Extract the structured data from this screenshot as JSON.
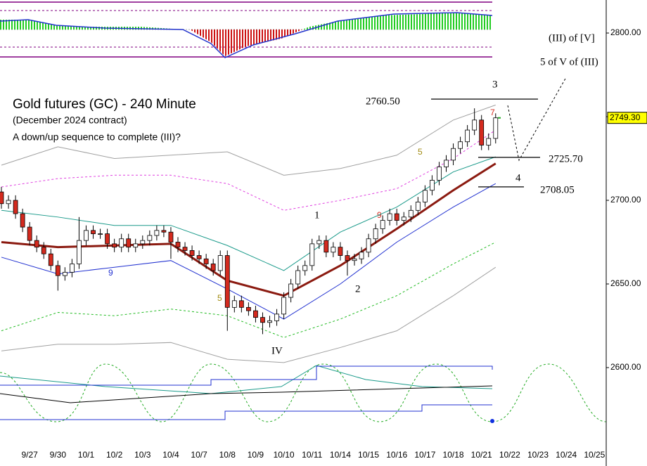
{
  "chart_data": {
    "type": "candlestick",
    "title": "Gold futures (GC) - 240 Minute",
    "subtitle": "(December 2024 contract)",
    "note": "A down/up sequence to complete (III)?",
    "annotations": [
      "(III) of [V]",
      "5 of V of (III)",
      "3",
      "4",
      "1",
      "2",
      "IV",
      "9",
      "5",
      "9",
      "5",
      "7"
    ],
    "levels": [
      {
        "value": 2760.5,
        "label": "2760.50"
      },
      {
        "value": 2725.7,
        "label": "2725.70"
      },
      {
        "value": 2708.05,
        "label": "2708.05"
      }
    ],
    "last": {
      "value": 2749.3,
      "label": "2749.30"
    },
    "ylim": [
      2559.25,
      2819.75
    ],
    "yticks": [
      {
        "value": 2600,
        "label": "2600.00"
      },
      {
        "value": 2650,
        "label": "2650.00"
      },
      {
        "value": 2700,
        "label": "2700.00"
      },
      {
        "value": 2750,
        "label": "2750.00"
      },
      {
        "value": 2800,
        "label": "2800.00"
      }
    ],
    "xlim": [
      -0.2,
      85.66
    ],
    "categories": [
      null,
      null,
      null,
      null,
      "9/27",
      null,
      null,
      null,
      "9/30",
      null,
      null,
      null,
      "10/1",
      null,
      null,
      null,
      "10/2",
      null,
      null,
      null,
      "10/3",
      null,
      null,
      null,
      "10/4",
      null,
      null,
      null,
      "10/7",
      null,
      null,
      null,
      "10/8",
      null,
      null,
      null,
      "10/9",
      null,
      null,
      null,
      "10/10",
      null,
      null,
      null,
      "10/11",
      null,
      null,
      null,
      "10/14",
      null,
      null,
      null,
      "10/15",
      null,
      null,
      null,
      "10/16",
      null,
      null,
      null,
      "10/17",
      null,
      null,
      null,
      "10/18",
      null,
      null,
      null,
      "10/21",
      null,
      null,
      null,
      "10/22",
      null,
      null,
      null,
      "10/23",
      null,
      null,
      null,
      "10/24",
      null,
      null,
      null,
      "10/25",
      null
    ],
    "open": [
      2705,
      2698,
      2700,
      2692,
      2684,
      2676,
      2672,
      2668,
      2661,
      2655,
      2657,
      2662,
      2676,
      2682,
      2680,
      2680,
      2674,
      2672,
      2677,
      2672,
      2674,
      2676,
      2679,
      2682,
      2681,
      2675,
      2672,
      2670,
      2667,
      2665,
      2662,
      2658,
      2667,
      2636,
      2640,
      2636,
      2634,
      2630,
      2627,
      2628,
      2632,
      2642,
      2650,
      2658,
      2661,
      2674,
      2676,
      2669,
      2672,
      2667,
      2664,
      2665,
      2669,
      2677,
      2683,
      2688,
      2692,
      2688,
      2690,
      2694,
      2699,
      2706,
      2712,
      2720,
      2724,
      2731,
      2735,
      2742,
      2748,
      2733,
      2737,
      null,
      null,
      null,
      null,
      null,
      null,
      null,
      null,
      null,
      null,
      null,
      null,
      null,
      null,
      null
    ],
    "high": [
      2708,
      2703,
      2703,
      2695,
      2687,
      2679,
      2675,
      2671,
      2664,
      2660,
      2665,
      2690,
      2685,
      2685,
      2683,
      2683,
      2677,
      2680,
      2680,
      2677,
      2679,
      2682,
      2685,
      2685,
      2684,
      2678,
      2675,
      2673,
      2670,
      2668,
      2665,
      2670,
      2670,
      2643,
      2643,
      2639,
      2637,
      2633,
      2631,
      2635,
      2645,
      2653,
      2661,
      2664,
      2677,
      2679,
      2679,
      2675,
      2675,
      2670,
      2668,
      2672,
      2680,
      2686,
      2691,
      2695,
      2695,
      2693,
      2697,
      2702,
      2709,
      2715,
      2723,
      2727,
      2734,
      2738,
      2745,
      2755,
      2751,
      2740,
      2752,
      null,
      null,
      null,
      null,
      null,
      null,
      null,
      null,
      null,
      null,
      null,
      null,
      null,
      null,
      null
    ],
    "low": [
      2695,
      2695,
      2689,
      2681,
      2673,
      2669,
      2665,
      2658,
      2646,
      2652,
      2654,
      2659,
      2673,
      2677,
      2677,
      2671,
      2669,
      2669,
      2669,
      2669,
      2671,
      2673,
      2676,
      2678,
      2665,
      2669,
      2667,
      2664,
      2662,
      2659,
      2655,
      2655,
      2622,
      2633,
      2633,
      2631,
      2627,
      2620,
      2624,
      2625,
      2629,
      2639,
      2647,
      2655,
      2658,
      2671,
      2666,
      2666,
      2664,
      2655,
      2661,
      2662,
      2666,
      2674,
      2680,
      2685,
      2685,
      2685,
      2687,
      2691,
      2696,
      2703,
      2709,
      2717,
      2721,
      2728,
      2732,
      2739,
      2730,
      2730,
      2734,
      null,
      null,
      null,
      null,
      null,
      null,
      null,
      null,
      null,
      null,
      null,
      null,
      null,
      null,
      null
    ],
    "close": [
      2698,
      2700,
      2692,
      2684,
      2676,
      2672,
      2668,
      2661,
      2655,
      2657,
      2662,
      2676,
      2682,
      2680,
      2680,
      2674,
      2672,
      2677,
      2672,
      2674,
      2676,
      2679,
      2682,
      2681,
      2675,
      2672,
      2670,
      2667,
      2665,
      2662,
      2658,
      2667,
      2636,
      2640,
      2636,
      2634,
      2630,
      2627,
      2628,
      2632,
      2642,
      2650,
      2658,
      2661,
      2674,
      2676,
      2669,
      2672,
      2667,
      2664,
      2665,
      2669,
      2677,
      2683,
      2688,
      2692,
      2688,
      2690,
      2694,
      2699,
      2706,
      2712,
      2720,
      2724,
      2731,
      2735,
      2742,
      2748,
      2733,
      2737,
      2749.3,
      null,
      null,
      null,
      null,
      null,
      null,
      null,
      null,
      null,
      null,
      null,
      null,
      null,
      null,
      null
    ],
    "up_color": "#ffffff",
    "down_color": "#d42a1e",
    "series": [
      {
        "color": "#a0a0a0",
        "dash": false,
        "x": [
          0,
          8,
          16,
          24,
          32,
          40,
          48,
          56,
          64,
          70
        ],
        "values": [
          2721,
          2732,
          2725,
          2727,
          2729,
          2715,
          2719,
          2727,
          2748,
          2757
        ]
      },
      {
        "color": "#e040e0",
        "dash": true,
        "x": [
          0,
          8,
          16,
          24,
          32,
          40,
          48,
          56,
          64,
          70
        ],
        "values": [
          2708,
          2713,
          2715,
          2715,
          2710,
          2694,
          2700,
          2707,
          2725,
          2742
        ]
      },
      {
        "color": "#1a9a8a",
        "dash": false,
        "x": [
          0,
          8,
          16,
          24,
          32,
          40,
          48,
          56,
          64,
          70
        ],
        "values": [
          2694,
          2690,
          2685,
          2685,
          2673,
          2658,
          2681,
          2696,
          2717,
          2726
        ]
      },
      {
        "color": "#8b1a10",
        "dash": false,
        "width": 3,
        "x": [
          0,
          8,
          16,
          24,
          32,
          40,
          48,
          56,
          64,
          70
        ],
        "values": [
          2675,
          2672,
          2673,
          2674,
          2652,
          2643,
          2661,
          2683,
          2706,
          2722
        ]
      },
      {
        "color": "#2030d0",
        "dash": false,
        "x": [
          0,
          8,
          16,
          24,
          32,
          40,
          48,
          56,
          64,
          70
        ],
        "values": [
          2666,
          2656,
          2660,
          2664,
          2647,
          2629,
          2650,
          2675,
          2696,
          2710
        ]
      },
      {
        "color": "#22bb22",
        "dash": true,
        "x": [
          0,
          8,
          16,
          24,
          32,
          40,
          48,
          56,
          64,
          70
        ],
        "values": [
          2622,
          2633,
          2631,
          2635,
          2631,
          2618,
          2629,
          2643,
          2662,
          2675
        ]
      },
      {
        "color": "#a0a0a0",
        "dash": false,
        "x": [
          0,
          8,
          16,
          24,
          32,
          40,
          48,
          56,
          64,
          70
        ],
        "values": [
          2610,
          2614,
          2614,
          2615,
          2605,
          2603,
          2612,
          2622,
          2643,
          2660
        ]
      }
    ]
  }
}
